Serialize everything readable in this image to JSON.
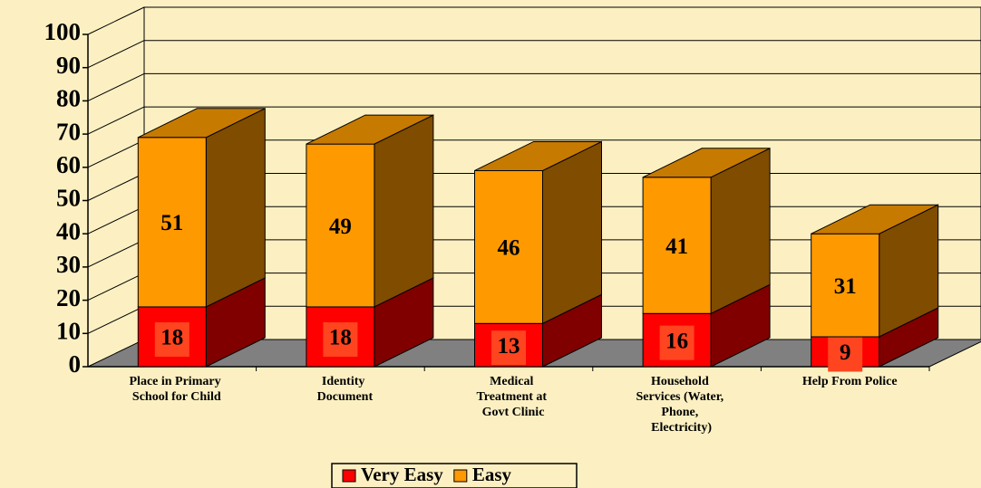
{
  "chart_data": {
    "type": "bar3d_stacked",
    "categories": [
      "Place in Primary School for Child",
      "Identity Document",
      "Medical Treatment at Govt Clinic",
      "Household Services (Water, Phone, Electricity)",
      "Help From Police"
    ],
    "series": [
      {
        "name": "Very Easy",
        "color": "#ff0000",
        "values": [
          18,
          18,
          13,
          16,
          9
        ]
      },
      {
        "name": "Easy",
        "color": "#ff9900",
        "values": [
          51,
          49,
          46,
          41,
          31
        ]
      }
    ],
    "ylim": [
      0,
      100
    ],
    "yticks": [
      0,
      10,
      20,
      30,
      40,
      50,
      60,
      70,
      80,
      90,
      100
    ],
    "grid": true,
    "legend": "bottom"
  }
}
